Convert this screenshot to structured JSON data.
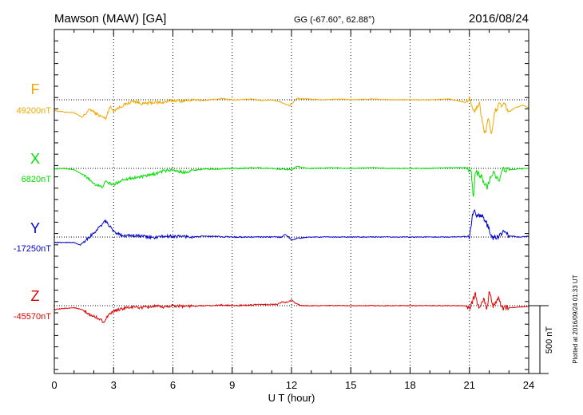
{
  "header": {
    "station": "Mawson (MAW)  [GA]",
    "coords": "GG (-67.60°,  62.88°)",
    "date": "2016/08/24"
  },
  "footer_note": "Plotted at 2016/09/24 01:33 UT",
  "chart_data": {
    "type": "line",
    "xlabel": "U T (hour)",
    "xlim": [
      0,
      24
    ],
    "xticks": [
      0,
      3,
      6,
      9,
      12,
      15,
      18,
      21,
      24
    ],
    "x_tick_labels": [
      "0",
      "3",
      "6",
      "9",
      "12",
      "15",
      "18",
      "21",
      "24"
    ],
    "grid": "dotted vertical lines every 3 hours",
    "scale_bar": "500 nT",
    "series": [
      {
        "name": "F",
        "baseline_label": "49200nT",
        "color": "#f0a800",
        "points": [
          [
            0,
            -80
          ],
          [
            0.5,
            -90
          ],
          [
            1,
            -95
          ],
          [
            1.4,
            -130
          ],
          [
            1.8,
            -70
          ],
          [
            2.2,
            -110
          ],
          [
            2.6,
            -140
          ],
          [
            2.8,
            -50
          ],
          [
            3,
            -80
          ],
          [
            3.5,
            -40
          ],
          [
            4,
            -10
          ],
          [
            4.5,
            -30
          ],
          [
            5,
            -20
          ],
          [
            5.5,
            -20
          ],
          [
            6,
            -5
          ],
          [
            6.5,
            -10
          ],
          [
            7,
            0
          ],
          [
            7.5,
            -5
          ],
          [
            8,
            0
          ],
          [
            8.5,
            10
          ],
          [
            9,
            0
          ],
          [
            9.5,
            0
          ],
          [
            10,
            5
          ],
          [
            10.5,
            -5
          ],
          [
            11,
            0
          ],
          [
            11.5,
            -20
          ],
          [
            11.9,
            -45
          ],
          [
            12,
            -30
          ],
          [
            12.3,
            10
          ],
          [
            12.8,
            5
          ],
          [
            13.5,
            0
          ],
          [
            14.5,
            5
          ],
          [
            15,
            0
          ],
          [
            16,
            5
          ],
          [
            17,
            0
          ],
          [
            18,
            0
          ],
          [
            19,
            0
          ],
          [
            20,
            5
          ],
          [
            20.8,
            -20
          ],
          [
            21,
            15
          ],
          [
            21.2,
            -90
          ],
          [
            21.5,
            -30
          ],
          [
            21.7,
            -190
          ],
          [
            21.8,
            -260
          ],
          [
            21.95,
            -120
          ],
          [
            22.1,
            -260
          ],
          [
            22.3,
            -80
          ],
          [
            22.5,
            -40
          ],
          [
            22.8,
            -40
          ],
          [
            23,
            -90
          ],
          [
            23.3,
            -60
          ],
          [
            23.7,
            -40
          ],
          [
            24,
            -60
          ]
        ]
      },
      {
        "name": "X",
        "baseline_label": "6820nT",
        "color": "#00e000",
        "points": [
          [
            0,
            -5
          ],
          [
            0.5,
            0
          ],
          [
            1,
            -10
          ],
          [
            1.3,
            -35
          ],
          [
            1.6,
            -60
          ],
          [
            2,
            -110
          ],
          [
            2.4,
            -140
          ],
          [
            2.6,
            -100
          ],
          [
            3,
            -120
          ],
          [
            3.5,
            -80
          ],
          [
            4,
            -70
          ],
          [
            4.5,
            -60
          ],
          [
            5,
            -45
          ],
          [
            5.5,
            -20
          ],
          [
            6,
            -10
          ],
          [
            6.5,
            -30
          ],
          [
            7,
            -15
          ],
          [
            7.5,
            -5
          ],
          [
            8,
            -5
          ],
          [
            9,
            0
          ],
          [
            9.5,
            0
          ],
          [
            10,
            5
          ],
          [
            11,
            0
          ],
          [
            11.5,
            -5
          ],
          [
            12,
            -10
          ],
          [
            12.3,
            15
          ],
          [
            12.6,
            5
          ],
          [
            13,
            0
          ],
          [
            14,
            5
          ],
          [
            15,
            0
          ],
          [
            16,
            5
          ],
          [
            17,
            0
          ],
          [
            18,
            0
          ],
          [
            19,
            0
          ],
          [
            20,
            5
          ],
          [
            20.8,
            5
          ],
          [
            21.1,
            -30
          ],
          [
            21.2,
            -230
          ],
          [
            21.3,
            -20
          ],
          [
            21.6,
            -60
          ],
          [
            21.9,
            -140
          ],
          [
            22.2,
            -20
          ],
          [
            22.5,
            -100
          ],
          [
            22.7,
            -5
          ],
          [
            23,
            -10
          ],
          [
            24,
            0
          ]
        ]
      },
      {
        "name": "Y",
        "baseline_label": "-17250nT",
        "color": "#0000d0",
        "points": [
          [
            0,
            -40
          ],
          [
            0.5,
            -40
          ],
          [
            1,
            -40
          ],
          [
            1.3,
            -60
          ],
          [
            1.6,
            -20
          ],
          [
            2,
            30
          ],
          [
            2.4,
            90
          ],
          [
            2.6,
            120
          ],
          [
            2.8,
            80
          ],
          [
            3,
            40
          ],
          [
            3.5,
            10
          ],
          [
            4,
            10
          ],
          [
            4.5,
            5
          ],
          [
            5,
            -5
          ],
          [
            5.5,
            5
          ],
          [
            6,
            5
          ],
          [
            6.5,
            5
          ],
          [
            7,
            0
          ],
          [
            7.5,
            5
          ],
          [
            8,
            5
          ],
          [
            9,
            0
          ],
          [
            10,
            0
          ],
          [
            11,
            0
          ],
          [
            11.5,
            0
          ],
          [
            11.7,
            20
          ],
          [
            12,
            -20
          ],
          [
            12.3,
            -10
          ],
          [
            12.6,
            -5
          ],
          [
            13,
            0
          ],
          [
            14,
            0
          ],
          [
            15,
            0
          ],
          [
            16,
            0
          ],
          [
            17,
            0
          ],
          [
            18,
            0
          ],
          [
            19,
            0
          ],
          [
            20,
            0
          ],
          [
            21,
            5
          ],
          [
            21.2,
            200
          ],
          [
            21.4,
            150
          ],
          [
            21.6,
            160
          ],
          [
            21.8,
            130
          ],
          [
            22,
            50
          ],
          [
            22.2,
            -10
          ],
          [
            22.5,
            10
          ],
          [
            22.8,
            40
          ],
          [
            23,
            10
          ],
          [
            23.5,
            0
          ],
          [
            24,
            5
          ]
        ]
      },
      {
        "name": "Z",
        "baseline_label": "-45570nT",
        "color": "#e00000",
        "points": [
          [
            0,
            -30
          ],
          [
            0.5,
            -20
          ],
          [
            1,
            -15
          ],
          [
            1.4,
            -30
          ],
          [
            1.8,
            -70
          ],
          [
            2.2,
            -90
          ],
          [
            2.5,
            -120
          ],
          [
            2.7,
            -80
          ],
          [
            3,
            -40
          ],
          [
            3.5,
            -20
          ],
          [
            4,
            -10
          ],
          [
            4.5,
            -15
          ],
          [
            5,
            -5
          ],
          [
            5.5,
            -10
          ],
          [
            6,
            0
          ],
          [
            7,
            -5
          ],
          [
            7.5,
            0
          ],
          [
            8,
            0
          ],
          [
            8.5,
            5
          ],
          [
            9,
            0
          ],
          [
            10,
            5
          ],
          [
            11,
            10
          ],
          [
            11.3,
            10
          ],
          [
            11.5,
            25
          ],
          [
            11.8,
            25
          ],
          [
            12,
            40
          ],
          [
            12.3,
            10
          ],
          [
            12.6,
            0
          ],
          [
            13,
            0
          ],
          [
            14,
            0
          ],
          [
            15,
            0
          ],
          [
            16,
            0
          ],
          [
            17,
            0
          ],
          [
            18,
            0
          ],
          [
            19,
            0
          ],
          [
            20,
            0
          ],
          [
            20.8,
            0
          ],
          [
            21,
            -20
          ],
          [
            21.3,
            80
          ],
          [
            21.5,
            -10
          ],
          [
            21.7,
            50
          ],
          [
            21.9,
            -20
          ],
          [
            22,
            110
          ],
          [
            22.2,
            -5
          ],
          [
            22.5,
            70
          ],
          [
            22.6,
            -20
          ],
          [
            23,
            -15
          ],
          [
            23.5,
            -10
          ],
          [
            24,
            -5
          ]
        ]
      }
    ]
  }
}
